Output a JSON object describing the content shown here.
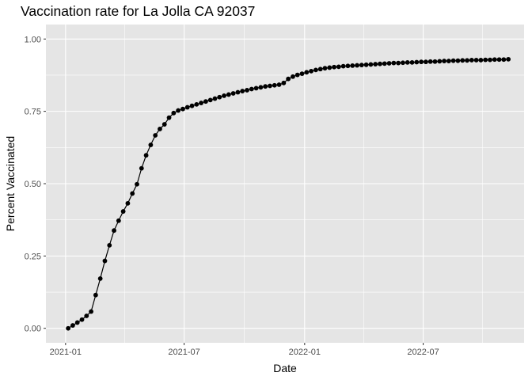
{
  "chart_data": {
    "type": "line",
    "title": "Vaccination rate for La Jolla CA 92037",
    "xlabel": "Date",
    "ylabel": "Percent Vaccinated",
    "x_axis_type": "date",
    "xlim": [
      "2020-12-02",
      "2022-12-02"
    ],
    "ylim": [
      -0.05,
      1.05
    ],
    "x_ticks": [
      {
        "value": "2021-01-01",
        "label": "2021-01"
      },
      {
        "value": "2021-07-01",
        "label": "2021-07"
      },
      {
        "value": "2022-01-01",
        "label": "2022-01"
      },
      {
        "value": "2022-07-01",
        "label": "2022-07"
      }
    ],
    "y_ticks": [
      {
        "value": 0,
        "label": "0.00"
      },
      {
        "value": 0.25,
        "label": "0.25"
      },
      {
        "value": 0.5,
        "label": "0.50"
      },
      {
        "value": 0.75,
        "label": "0.75"
      },
      {
        "value": 1.0,
        "label": "1.00"
      }
    ],
    "grid": true,
    "background": "#e5e5e5",
    "grid_color": "#ffffff",
    "series_color": "#000000",
    "series": [
      {
        "start_date": "2021-01-05",
        "interval_days": 7,
        "values": [
          0.0,
          0.01,
          0.02,
          0.03,
          0.043,
          0.058,
          0.115,
          0.172,
          0.233,
          0.287,
          0.338,
          0.372,
          0.404,
          0.432,
          0.466,
          0.498,
          0.553,
          0.598,
          0.634,
          0.667,
          0.689,
          0.705,
          0.728,
          0.744,
          0.753,
          0.758,
          0.764,
          0.769,
          0.774,
          0.779,
          0.784,
          0.789,
          0.794,
          0.799,
          0.804,
          0.808,
          0.812,
          0.816,
          0.82,
          0.823,
          0.827,
          0.83,
          0.833,
          0.836,
          0.838,
          0.84,
          0.842,
          0.848,
          0.862,
          0.87,
          0.876,
          0.88,
          0.885,
          0.889,
          0.893,
          0.896,
          0.899,
          0.901,
          0.903,
          0.904,
          0.906,
          0.907,
          0.908,
          0.909,
          0.91,
          0.911,
          0.912,
          0.913,
          0.914,
          0.915,
          0.916,
          0.917,
          0.917,
          0.918,
          0.919,
          0.919,
          0.92,
          0.921,
          0.921,
          0.922,
          0.922,
          0.923,
          0.924,
          0.924,
          0.925,
          0.925,
          0.926,
          0.926,
          0.927,
          0.927,
          0.927,
          0.928,
          0.928,
          0.929,
          0.929,
          0.929,
          0.93
        ]
      }
    ]
  }
}
